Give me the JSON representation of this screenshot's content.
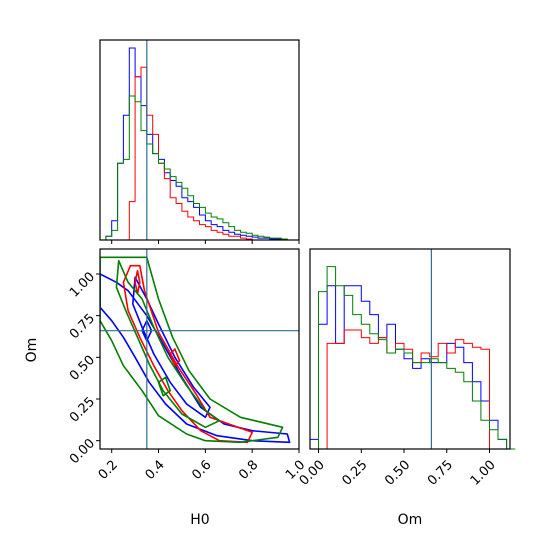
{
  "chart_data": {
    "type": "corner",
    "parameters": [
      "H0",
      "Om"
    ],
    "truths": {
      "H0": 0.35,
      "Om": 0.66
    },
    "colors": {
      "run_1": "#0000ff",
      "run_2": "#ff0000",
      "run_3": "#008000"
    },
    "histograms": {
      "H0": {
        "xlim": [
          0.15,
          1.0
        ],
        "bin_width": 0.025,
        "bin_starts": [
          0.175,
          0.2,
          0.225,
          0.25,
          0.275,
          0.3,
          0.325,
          0.35,
          0.375,
          0.4,
          0.425,
          0.45,
          0.475,
          0.5,
          0.525,
          0.55,
          0.575,
          0.6,
          0.625,
          0.65,
          0.675,
          0.7,
          0.725,
          0.75,
          0.775,
          0.8,
          0.825,
          0.85,
          0.875,
          0.9,
          0.925,
          0.95
        ],
        "series": [
          {
            "color": "#0000ff",
            "values": [
              0.02,
              0.1,
              0.4,
              0.65,
              1.0,
              0.85,
              0.7,
              0.55,
              0.45,
              0.42,
              0.35,
              0.31,
              0.28,
              0.22,
              0.2,
              0.17,
              0.13,
              0.1,
              0.08,
              0.07,
              0.05,
              0.04,
              0.03,
              0.025,
              0.02,
              0.015,
              0.01,
              0.01,
              0.005,
              0.005,
              0,
              0
            ]
          },
          {
            "color": "#ff0000",
            "values": [
              0,
              0,
              0,
              0,
              0.2,
              0.85,
              0.9,
              0.65,
              0.55,
              0.4,
              0.32,
              0.22,
              0.19,
              0.15,
              0.12,
              0.1,
              0.08,
              0.07,
              0.05,
              0.04,
              0.03,
              0.02,
              0.02,
              0.01,
              0.005,
              0,
              0,
              0,
              0,
              0,
              0,
              0
            ]
          },
          {
            "color": "#008000",
            "values": [
              0.02,
              0.05,
              0.4,
              0.42,
              0.75,
              0.72,
              0.57,
              0.5,
              0.45,
              0.4,
              0.37,
              0.33,
              0.3,
              0.27,
              0.23,
              0.19,
              0.17,
              0.14,
              0.12,
              0.11,
              0.09,
              0.07,
              0.05,
              0.04,
              0.035,
              0.025,
              0.02,
              0.015,
              0.01,
              0.01,
              0.005,
              0
            ]
          }
        ]
      },
      "Om": {
        "xlim": [
          -0.05,
          1.12
        ],
        "bin_width": 0.05,
        "bin_starts": [
          -0.05,
          0,
          0.05,
          0.1,
          0.15,
          0.2,
          0.25,
          0.3,
          0.35,
          0.4,
          0.45,
          0.5,
          0.55,
          0.6,
          0.65,
          0.7,
          0.75,
          0.8,
          0.85,
          0.9,
          0.95,
          1.0,
          1.05,
          1.1
        ],
        "series": [
          {
            "color": "#0000ff",
            "values": [
              0.05,
              0.65,
              0.85,
              0.55,
              0.85,
              0.85,
              0.77,
              0.7,
              0.58,
              0.65,
              0.52,
              0.47,
              0.42,
              0.47,
              0.45,
              0.45,
              0.55,
              0.53,
              0.45,
              0.35,
              0.25,
              0.15,
              0.05,
              0
            ]
          },
          {
            "color": "#ff0000",
            "values": [
              0,
              0,
              0.55,
              0.55,
              0.62,
              0.62,
              0.58,
              0.55,
              0.58,
              0.5,
              0.55,
              0.52,
              0.45,
              0.5,
              0.48,
              0.55,
              0.5,
              0.57,
              0.55,
              0.53,
              0.52,
              0,
              0,
              0
            ]
          },
          {
            "color": "#008000",
            "values": [
              0,
              0.82,
              0.95,
              0.85,
              0.8,
              0.7,
              0.65,
              0.6,
              0.57,
              0.5,
              0.52,
              0.5,
              0.45,
              0.45,
              0.47,
              0.45,
              0.42,
              0.4,
              0.35,
              0.25,
              0.15,
              0.1,
              0.05,
              0
            ]
          }
        ]
      }
    },
    "contours": {
      "xlim": [
        0.15,
        1.0
      ],
      "ylim": [
        -0.05,
        1.15
      ],
      "series": [
        {
          "color": "#0000ff",
          "paths": [
            [
              [
                0.15,
                1.0
              ],
              [
                0.22,
                0.95
              ],
              [
                0.27,
                0.9
              ],
              [
                0.35,
                0.75
              ],
              [
                0.42,
                0.58
              ],
              [
                0.5,
                0.38
              ],
              [
                0.58,
                0.2
              ],
              [
                0.68,
                0.1
              ],
              [
                0.8,
                0.06
              ],
              [
                0.95,
                0.04
              ],
              [
                0.96,
                -0.01
              ],
              [
                0.8,
                0.0
              ],
              [
                0.65,
                0.03
              ],
              [
                0.52,
                0.1
              ],
              [
                0.43,
                0.22
              ],
              [
                0.36,
                0.35
              ],
              [
                0.3,
                0.5
              ],
              [
                0.25,
                0.62
              ],
              [
                0.2,
                0.72
              ],
              [
                0.15,
                0.8
              ]
            ],
            [
              [
                0.3,
                0.98
              ],
              [
                0.35,
                0.85
              ],
              [
                0.4,
                0.7
              ],
              [
                0.47,
                0.5
              ],
              [
                0.55,
                0.32
              ],
              [
                0.62,
                0.2
              ],
              [
                0.6,
                0.14
              ],
              [
                0.52,
                0.22
              ],
              [
                0.45,
                0.35
              ],
              [
                0.38,
                0.52
              ],
              [
                0.33,
                0.68
              ],
              [
                0.29,
                0.82
              ]
            ],
            [
              [
                0.33,
                0.66
              ],
              [
                0.35,
                0.72
              ],
              [
                0.37,
                0.66
              ],
              [
                0.35,
                0.6
              ]
            ]
          ]
        },
        {
          "color": "#ff0000",
          "paths": [
            [
              [
                0.25,
                0.95
              ],
              [
                0.28,
                1.05
              ],
              [
                0.32,
                1.05
              ],
              [
                0.34,
                0.9
              ],
              [
                0.4,
                0.65
              ],
              [
                0.48,
                0.45
              ],
              [
                0.56,
                0.28
              ],
              [
                0.62,
                0.14
              ],
              [
                0.7,
                0.1
              ],
              [
                0.8,
                0.05
              ],
              [
                0.78,
                -0.01
              ],
              [
                0.66,
                0.0
              ],
              [
                0.58,
                0.06
              ],
              [
                0.5,
                0.18
              ],
              [
                0.44,
                0.3
              ],
              [
                0.38,
                0.45
              ],
              [
                0.32,
                0.62
              ],
              [
                0.27,
                0.78
              ]
            ],
            [
              [
                0.3,
                0.95
              ],
              [
                0.31,
                1.02
              ],
              [
                0.32,
                0.95
              ],
              [
                0.31,
                0.88
              ]
            ],
            [
              [
                0.45,
                0.52
              ],
              [
                0.47,
                0.55
              ],
              [
                0.49,
                0.48
              ],
              [
                0.47,
                0.45
              ]
            ]
          ]
        },
        {
          "color": "#008000",
          "paths": [
            [
              [
                0.15,
                1.1
              ],
              [
                0.35,
                1.1
              ],
              [
                0.4,
                0.85
              ],
              [
                0.46,
                0.62
              ],
              [
                0.53,
                0.42
              ],
              [
                0.62,
                0.25
              ],
              [
                0.75,
                0.14
              ],
              [
                0.93,
                0.08
              ],
              [
                0.91,
                0.02
              ],
              [
                0.75,
                -0.01
              ],
              [
                0.6,
                0.0
              ],
              [
                0.52,
                0.04
              ],
              [
                0.4,
                0.15
              ],
              [
                0.33,
                0.3
              ],
              [
                0.25,
                0.45
              ],
              [
                0.2,
                0.6
              ],
              [
                0.15,
                0.72
              ]
            ],
            [
              [
                0.23,
                1.08
              ],
              [
                0.27,
                0.95
              ],
              [
                0.33,
                0.85
              ],
              [
                0.38,
                0.68
              ],
              [
                0.44,
                0.5
              ],
              [
                0.52,
                0.33
              ],
              [
                0.6,
                0.18
              ],
              [
                0.66,
                0.12
              ],
              [
                0.6,
                0.08
              ],
              [
                0.5,
                0.16
              ],
              [
                0.42,
                0.3
              ],
              [
                0.36,
                0.46
              ],
              [
                0.31,
                0.62
              ],
              [
                0.26,
                0.78
              ],
              [
                0.22,
                0.92
              ]
            ],
            [
              [
                0.4,
                0.35
              ],
              [
                0.43,
                0.38
              ],
              [
                0.45,
                0.3
              ],
              [
                0.42,
                0.27
              ]
            ]
          ]
        }
      ]
    },
    "axes": {
      "H0": {
        "ticks": [
          0.2,
          0.4,
          0.6,
          0.8,
          1.0
        ],
        "tick_labels": [
          "0.2",
          "0.4",
          "0.6",
          "0.8",
          "1.0"
        ],
        "label": "H0"
      },
      "Om_y": {
        "ticks": [
          0.0,
          0.25,
          0.5,
          0.75,
          1.0
        ],
        "tick_labels": [
          "0.00",
          "0.25",
          "0.50",
          "0.75",
          "1.00"
        ],
        "label": "Om"
      },
      "Om_x": {
        "ticks": [
          0.0,
          0.25,
          0.5,
          0.75,
          1.0
        ],
        "tick_labels": [
          "0.00",
          "0.25",
          "0.50",
          "0.75",
          "1.00"
        ],
        "label": "Om"
      }
    }
  }
}
